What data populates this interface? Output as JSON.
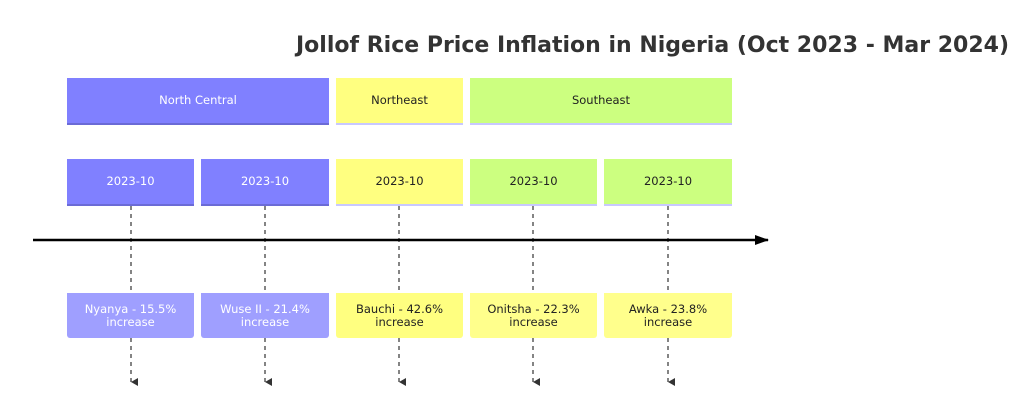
{
  "title": "Jollof Rice Price Inflation in Nigeria (Oct 2023 - Mar 2024)",
  "sections": [
    {
      "label": "North Central"
    },
    {
      "label": "Northeast"
    },
    {
      "label": "Southeast"
    }
  ],
  "periods": [
    {
      "label": "2023-10",
      "event": "Nyanya - 15.5% increase",
      "section": "North Central"
    },
    {
      "label": "2023-10",
      "event": "Wuse II - 21.4% increase",
      "section": "North Central"
    },
    {
      "label": "2023-10",
      "event": "Bauchi - 42.6% increase",
      "section": "Northeast"
    },
    {
      "label": "2023-10",
      "event": "Onitsha - 22.3% increase",
      "section": "Southeast"
    },
    {
      "label": "2023-10",
      "event": "Awka - 23.8% increase",
      "section": "Southeast"
    }
  ],
  "colors": {
    "north_central": "#8080ff",
    "northeast": "#ffff80",
    "southeast": "#ccff80",
    "axis": "#000000"
  }
}
